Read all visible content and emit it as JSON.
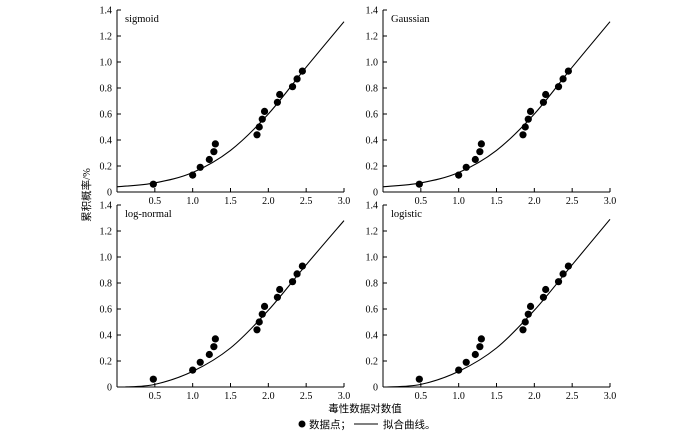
{
  "figure": {
    "ylabel": "累积概率/%",
    "xlabel": "毒性数据对数值",
    "legend": {
      "points_label": "数据点；",
      "curve_label": "拟合曲线。"
    }
  },
  "chart_data": [
    {
      "type": "scatter",
      "title": "sigmoid",
      "xlim": [
        0,
        3.0
      ],
      "ylim": [
        0,
        1.4
      ],
      "xticks": [
        "0.5",
        "1.0",
        "1.5",
        "2.0",
        "2.5",
        "3.0"
      ],
      "yticks": [
        "0",
        "0.2",
        "0.4",
        "0.6",
        "0.8",
        "1.0",
        "1.2",
        "1.4"
      ],
      "points": [
        [
          0.48,
          0.06
        ],
        [
          1.0,
          0.13
        ],
        [
          1.1,
          0.19
        ],
        [
          1.22,
          0.25
        ],
        [
          1.28,
          0.31
        ],
        [
          1.3,
          0.37
        ],
        [
          1.85,
          0.44
        ],
        [
          1.88,
          0.5
        ],
        [
          1.92,
          0.56
        ],
        [
          1.95,
          0.62
        ],
        [
          2.12,
          0.69
        ],
        [
          2.15,
          0.75
        ],
        [
          2.32,
          0.81
        ],
        [
          2.38,
          0.87
        ],
        [
          2.45,
          0.93
        ]
      ],
      "curve": [
        [
          0,
          0.04
        ],
        [
          0.5,
          0.07
        ],
        [
          1.0,
          0.15
        ],
        [
          1.5,
          0.32
        ],
        [
          2.0,
          0.6
        ],
        [
          2.5,
          0.96
        ],
        [
          3.0,
          1.31
        ]
      ]
    },
    {
      "type": "scatter",
      "title": "Gaussian",
      "xlim": [
        0,
        3.0
      ],
      "ylim": [
        0,
        1.4
      ],
      "xticks": [
        "0.5",
        "1.0",
        "1.5",
        "2.0",
        "2.5",
        "3.0"
      ],
      "yticks": [
        "0",
        "0.2",
        "0.4",
        "0.6",
        "0.8",
        "1.0",
        "1.2",
        "1.4"
      ],
      "points": [
        [
          0.48,
          0.06
        ],
        [
          1.0,
          0.13
        ],
        [
          1.1,
          0.19
        ],
        [
          1.22,
          0.25
        ],
        [
          1.28,
          0.31
        ],
        [
          1.3,
          0.37
        ],
        [
          1.85,
          0.44
        ],
        [
          1.88,
          0.5
        ],
        [
          1.92,
          0.56
        ],
        [
          1.95,
          0.62
        ],
        [
          2.12,
          0.69
        ],
        [
          2.15,
          0.75
        ],
        [
          2.32,
          0.81
        ],
        [
          2.38,
          0.87
        ],
        [
          2.45,
          0.93
        ]
      ],
      "curve": [
        [
          0,
          0.04
        ],
        [
          0.5,
          0.07
        ],
        [
          1.0,
          0.15
        ],
        [
          1.5,
          0.32
        ],
        [
          2.0,
          0.6
        ],
        [
          2.5,
          0.96
        ],
        [
          3.0,
          1.31
        ]
      ]
    },
    {
      "type": "scatter",
      "title": "log-normal",
      "xlim": [
        0,
        3.0
      ],
      "ylim": [
        0,
        1.4
      ],
      "xticks": [
        "0.5",
        "1.0",
        "1.5",
        "2.0",
        "2.5",
        "3.0"
      ],
      "yticks": [
        "0",
        "0.2",
        "0.4",
        "0.6",
        "0.8",
        "1.0",
        "1.2",
        "1.4"
      ],
      "points": [
        [
          0.48,
          0.06
        ],
        [
          1.0,
          0.13
        ],
        [
          1.1,
          0.19
        ],
        [
          1.22,
          0.25
        ],
        [
          1.28,
          0.31
        ],
        [
          1.3,
          0.37
        ],
        [
          1.85,
          0.44
        ],
        [
          1.88,
          0.5
        ],
        [
          1.92,
          0.56
        ],
        [
          1.95,
          0.62
        ],
        [
          2.12,
          0.69
        ],
        [
          2.15,
          0.75
        ],
        [
          2.32,
          0.81
        ],
        [
          2.38,
          0.87
        ],
        [
          2.45,
          0.93
        ]
      ],
      "curve": [
        [
          0.1,
          0.0
        ],
        [
          0.5,
          0.02
        ],
        [
          1.0,
          0.12
        ],
        [
          1.5,
          0.3
        ],
        [
          2.0,
          0.59
        ],
        [
          2.5,
          0.94
        ],
        [
          3.0,
          1.28
        ]
      ]
    },
    {
      "type": "scatter",
      "title": "logistic",
      "xlim": [
        0,
        3.0
      ],
      "ylim": [
        0,
        1.4
      ],
      "xticks": [
        "0.5",
        "1.0",
        "1.5",
        "2.0",
        "2.5",
        "3.0"
      ],
      "yticks": [
        "0",
        "0.2",
        "0.4",
        "0.6",
        "0.8",
        "1.0",
        "1.2",
        "1.4"
      ],
      "points": [
        [
          0.48,
          0.06
        ],
        [
          1.0,
          0.13
        ],
        [
          1.1,
          0.19
        ],
        [
          1.22,
          0.25
        ],
        [
          1.28,
          0.31
        ],
        [
          1.3,
          0.37
        ],
        [
          1.85,
          0.44
        ],
        [
          1.88,
          0.5
        ],
        [
          1.92,
          0.56
        ],
        [
          1.95,
          0.62
        ],
        [
          2.12,
          0.69
        ],
        [
          2.15,
          0.75
        ],
        [
          2.32,
          0.81
        ],
        [
          2.38,
          0.87
        ],
        [
          2.45,
          0.93
        ]
      ],
      "curve": [
        [
          0.05,
          0.0
        ],
        [
          0.5,
          0.02
        ],
        [
          1.0,
          0.12
        ],
        [
          1.5,
          0.3
        ],
        [
          2.0,
          0.59
        ],
        [
          2.5,
          0.94
        ],
        [
          3.0,
          1.29
        ]
      ]
    }
  ]
}
